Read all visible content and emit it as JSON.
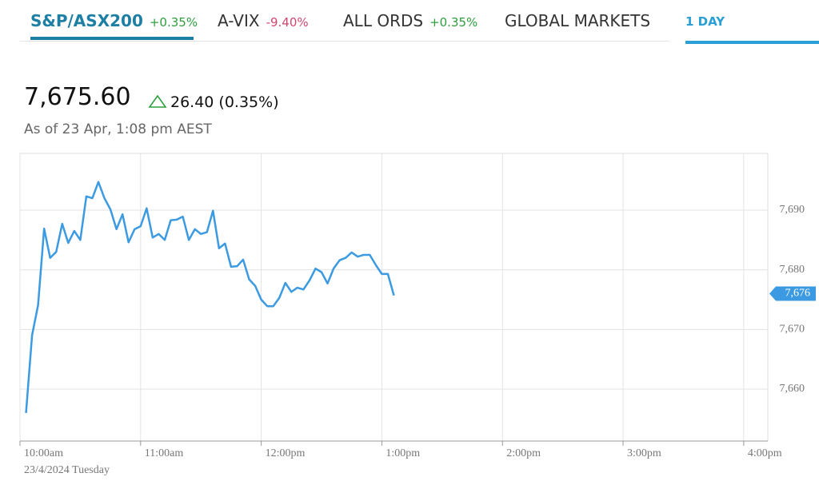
{
  "tabs": [
    {
      "name": "S&P/ASX200",
      "change": "+0.35%"
    },
    {
      "name": "A-VIX",
      "change": "-9.40%"
    },
    {
      "name": "ALL ORDS",
      "change": "+0.35%"
    },
    {
      "name": "GLOBAL MARKETS"
    }
  ],
  "range_tab": "1 DAY",
  "quote": {
    "price": "7,675.60",
    "change": "26.40 (0.35%)",
    "as_of": "As of 23 Apr, 1:08 pm AEST"
  },
  "chart_data": {
    "type": "line",
    "x_label": "23/4/2024 Tuesday",
    "x": [
      10.05,
      10.1,
      10.15,
      10.2,
      10.25,
      10.3,
      10.35,
      10.4,
      10.45,
      10.5,
      10.55,
      10.6,
      10.65,
      10.7,
      10.75,
      10.8,
      10.85,
      10.9,
      10.95,
      11.0,
      11.05,
      11.1,
      11.15,
      11.2,
      11.25,
      11.3,
      11.35,
      11.4,
      11.45,
      11.5,
      11.55,
      11.6,
      11.65,
      11.7,
      11.75,
      11.8,
      11.85,
      11.9,
      11.95,
      12.0,
      12.05,
      12.1,
      12.15,
      12.2,
      12.25,
      12.3,
      12.35,
      12.4,
      12.45,
      12.5,
      12.55,
      12.6,
      12.65,
      12.7,
      12.75,
      12.8,
      12.85,
      12.9,
      12.95,
      13.0,
      13.05,
      13.1
    ],
    "series": [
      {
        "name": "S&P/ASX200",
        "color": "#3b9ae1",
        "values": [
          7656.0,
          7669.0,
          7674.1,
          7686.9,
          7682.0,
          7683.0,
          7687.7,
          7684.5,
          7686.5,
          7685.0,
          7692.3,
          7692.0,
          7694.7,
          7692.0,
          7690.1,
          7686.8,
          7689.3,
          7684.6,
          7686.8,
          7687.3,
          7690.3,
          7685.4,
          7686.0,
          7685.0,
          7688.3,
          7688.4,
          7688.9,
          7685.0,
          7686.8,
          7686.0,
          7686.3,
          7689.9,
          7683.6,
          7684.4,
          7680.5,
          7680.6,
          7681.7,
          7678.4,
          7677.3,
          7675.0,
          7673.9,
          7673.9,
          7675.3,
          7677.8,
          7676.3,
          7677.0,
          7676.7,
          7678.2,
          7680.2,
          7679.6,
          7677.7,
          7680.2,
          7681.6,
          7682.0,
          7682.9,
          7682.2,
          7682.5,
          7682.5,
          7680.8,
          7679.3,
          7679.3,
          7675.7
        ]
      }
    ],
    "xlim": [
      10,
      16.2
    ],
    "xticks": [
      {
        "value": 10,
        "label": "10:00am"
      },
      {
        "value": 11,
        "label": "11:00am"
      },
      {
        "value": 12,
        "label": "12:00pm"
      },
      {
        "value": 13,
        "label": "1:00pm"
      },
      {
        "value": 14,
        "label": "2:00pm"
      },
      {
        "value": 15,
        "label": "3:00pm"
      },
      {
        "value": 16,
        "label": "4:00pm"
      }
    ],
    "ylim": [
      7651.3,
      7699.5
    ],
    "yticks": [
      {
        "value": 7660,
        "label": "7,660"
      },
      {
        "value": 7670,
        "label": "7,670"
      },
      {
        "value": 7680,
        "label": "7,680"
      },
      {
        "value": 7690,
        "label": "7,690"
      }
    ],
    "last_marker": {
      "value": 7676,
      "label": "7,676",
      "color": "#3b9ae1"
    },
    "grid": true
  }
}
